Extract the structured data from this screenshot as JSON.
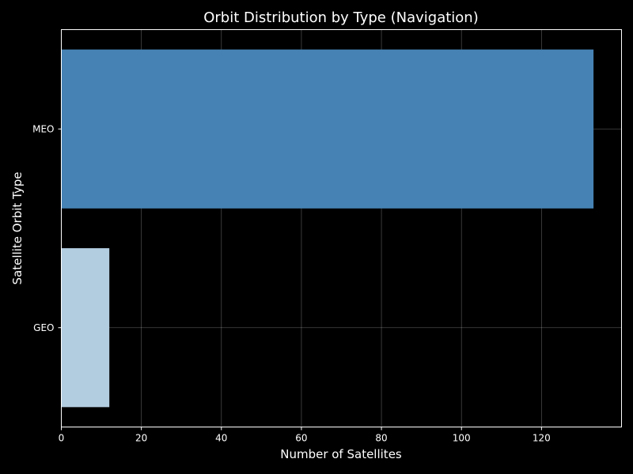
{
  "chart_data": {
    "type": "bar",
    "orientation": "horizontal",
    "title": "Orbit Distribution by Type (Navigation)",
    "xlabel": "Number of Satellites",
    "ylabel": "Satellite Orbit Type",
    "categories": [
      "GEO",
      "MEO"
    ],
    "values": [
      12,
      133
    ],
    "bar_colors": [
      "#b3cde0",
      "#4682b4"
    ],
    "xlim": [
      0,
      140
    ],
    "xticks": [
      0,
      20,
      40,
      60,
      80,
      100,
      120
    ],
    "xtick_labels": [
      "0",
      "20",
      "40",
      "60",
      "80",
      "100",
      "120"
    ],
    "grid": true,
    "background": "#000000",
    "text_color": "#ffffff"
  }
}
